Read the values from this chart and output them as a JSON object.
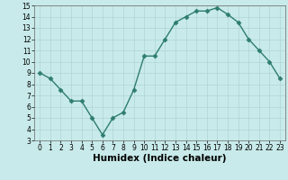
{
  "x": [
    0,
    1,
    2,
    3,
    4,
    5,
    6,
    7,
    8,
    9,
    10,
    11,
    12,
    13,
    14,
    15,
    16,
    17,
    18,
    19,
    20,
    21,
    22,
    23
  ],
  "y": [
    9.0,
    8.5,
    7.5,
    6.5,
    6.5,
    5.0,
    3.5,
    5.0,
    5.5,
    7.5,
    10.5,
    10.5,
    12.0,
    13.5,
    14.0,
    14.5,
    14.5,
    14.8,
    14.2,
    13.5,
    12.0,
    11.0,
    10.0,
    8.5
  ],
  "line_color": "#2e7d6e",
  "marker": "D",
  "marker_size": 2.5,
  "bg_color": "#c8eaea",
  "grid_color": "#b0d4d4",
  "xlabel": "Humidex (Indice chaleur)",
  "ylim": [
    3,
    15
  ],
  "xlim": [
    -0.5,
    23.5
  ],
  "yticks": [
    3,
    4,
    5,
    6,
    7,
    8,
    9,
    10,
    11,
    12,
    13,
    14,
    15
  ],
  "xticks": [
    0,
    1,
    2,
    3,
    4,
    5,
    6,
    7,
    8,
    9,
    10,
    11,
    12,
    13,
    14,
    15,
    16,
    17,
    18,
    19,
    20,
    21,
    22,
    23
  ],
  "tick_fontsize": 5.5,
  "xlabel_fontsize": 7.5,
  "xlabel_fontweight": "bold"
}
